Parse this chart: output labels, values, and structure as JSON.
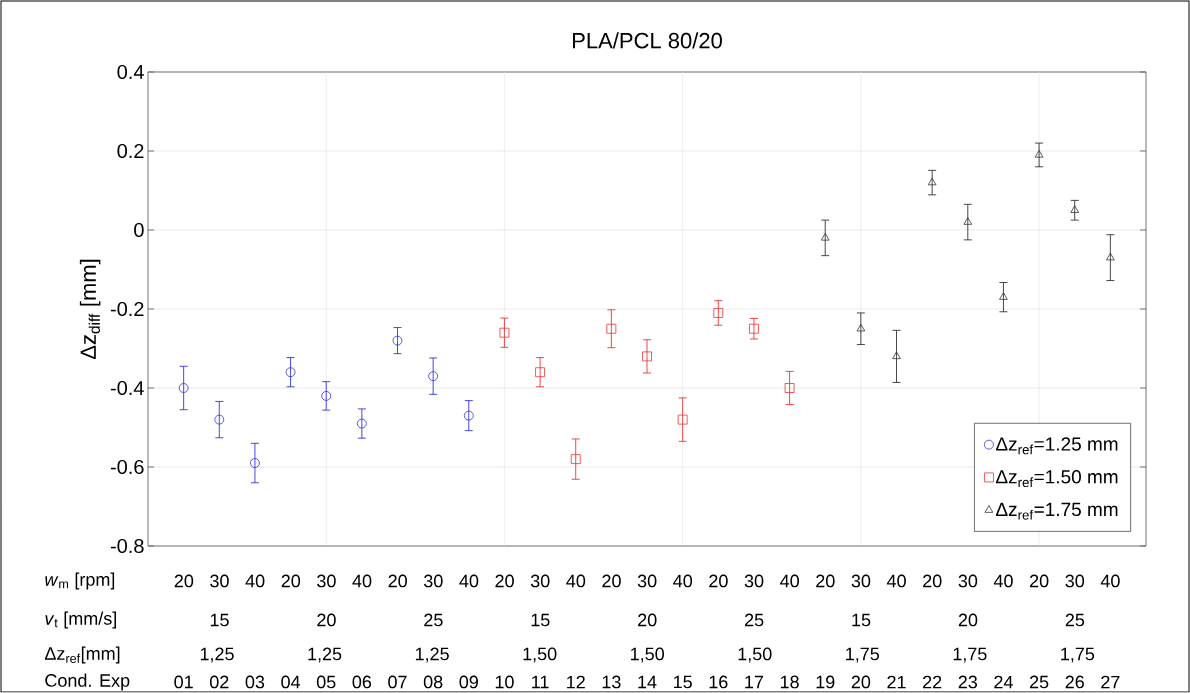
{
  "chart_data": {
    "type": "scatter",
    "title": "PLA/PCL 80/20",
    "ylabel": "Δz$_{diff}$ [mm]",
    "xlim": [
      0,
      28
    ],
    "xticks": [
      {
        "value": 1,
        "label": "01"
      },
      {
        "value": 2,
        "label": "02"
      },
      {
        "value": 3,
        "label": "03"
      },
      {
        "value": 4,
        "label": "04"
      },
      {
        "value": 5,
        "label": "05"
      },
      {
        "value": 6,
        "label": "06"
      },
      {
        "value": 7,
        "label": "07"
      },
      {
        "value": 8,
        "label": "08"
      },
      {
        "value": 9,
        "label": "09"
      },
      {
        "value": 10,
        "label": "10"
      },
      {
        "value": 11,
        "label": "11"
      },
      {
        "value": 12,
        "label": "12"
      },
      {
        "value": 13,
        "label": "13"
      },
      {
        "value": 14,
        "label": "14"
      },
      {
        "value": 15,
        "label": "15"
      },
      {
        "value": 16,
        "label": "16"
      },
      {
        "value": 17,
        "label": "17"
      },
      {
        "value": 18,
        "label": "18"
      },
      {
        "value": 19,
        "label": "19"
      },
      {
        "value": 20,
        "label": "20"
      },
      {
        "value": 21,
        "label": "21"
      },
      {
        "value": 22,
        "label": "22"
      },
      {
        "value": 23,
        "label": "23"
      },
      {
        "value": 24,
        "label": "24"
      },
      {
        "value": 25,
        "label": "25"
      },
      {
        "value": 26,
        "label": "26"
      },
      {
        "value": 27,
        "label": "27"
      }
    ],
    "ref_lines": [
      {
        "axis": "x",
        "value": 5,
        "color": "#e6e6e6"
      },
      {
        "axis": "x",
        "value": 10,
        "color": "#e6e6e6"
      },
      {
        "axis": "x",
        "value": 15,
        "color": "#e6e6e6"
      },
      {
        "axis": "x",
        "value": 20,
        "color": "#e6e6e6"
      },
      {
        "axis": "x",
        "value": 25,
        "color": "#e6e6e6"
      }
    ],
    "ylim": [
      -0.8,
      0.4
    ],
    "yticks": [
      -0.8,
      -0.6,
      -0.4,
      -0.2,
      0,
      0.2,
      0.4
    ],
    "grid": "y",
    "legend": "bottom right",
    "series": [
      {
        "name": "Δz$_{ref}$=1.25 mm",
        "marker": "circle",
        "color": "#3333dd",
        "x": [
          1,
          2,
          3,
          4,
          5,
          6,
          7,
          8,
          9
        ],
        "values": [
          -0.4,
          -0.48,
          -0.59,
          -0.36,
          -0.42,
          -0.49,
          -0.28,
          -0.37,
          -0.47
        ],
        "errors": [
          0.055,
          0.046,
          0.05,
          0.037,
          0.036,
          0.037,
          0.033,
          0.046,
          0.038
        ]
      },
      {
        "name": "Δz$_{ref}$=1.50 mm",
        "marker": "square",
        "color": "#ee3333",
        "x": [
          10,
          11,
          12,
          13,
          14,
          15,
          16,
          17,
          18
        ],
        "values": [
          -0.26,
          -0.36,
          -0.58,
          -0.25,
          -0.32,
          -0.48,
          -0.21,
          -0.25,
          -0.4
        ],
        "errors": [
          0.037,
          0.037,
          0.051,
          0.048,
          0.042,
          0.055,
          0.031,
          0.026,
          0.042
        ]
      },
      {
        "name": "Δz$_{ref}$=1.75 mm",
        "marker": "triangle",
        "color": "#333333",
        "x": [
          19,
          20,
          21,
          22,
          23,
          24,
          25,
          26,
          27
        ],
        "values": [
          -0.02,
          -0.25,
          -0.32,
          0.12,
          0.02,
          -0.17,
          0.19,
          0.05,
          -0.07
        ],
        "errors": [
          0.045,
          0.04,
          0.066,
          0.031,
          0.045,
          0.037,
          0.03,
          0.025,
          0.058
        ]
      }
    ],
    "annotations": [
      "*w*$_{m}$ [rpm]",
      "20 30 40 20 30 40 20 30 40 20 30 40 20 30 40 20 30 40 20 30 40 20 30 40 20 30 40",
      "*v*$_{t}$ [mm/s]",
      "15 20 25 15 20 25 15 20 25",
      "Δz$_{ref}$[mm]",
      "1,25 1,25 1,25 1,50 1,50 1,50 1,75 1,75 1,75",
      "Cond. Exp"
    ]
  }
}
